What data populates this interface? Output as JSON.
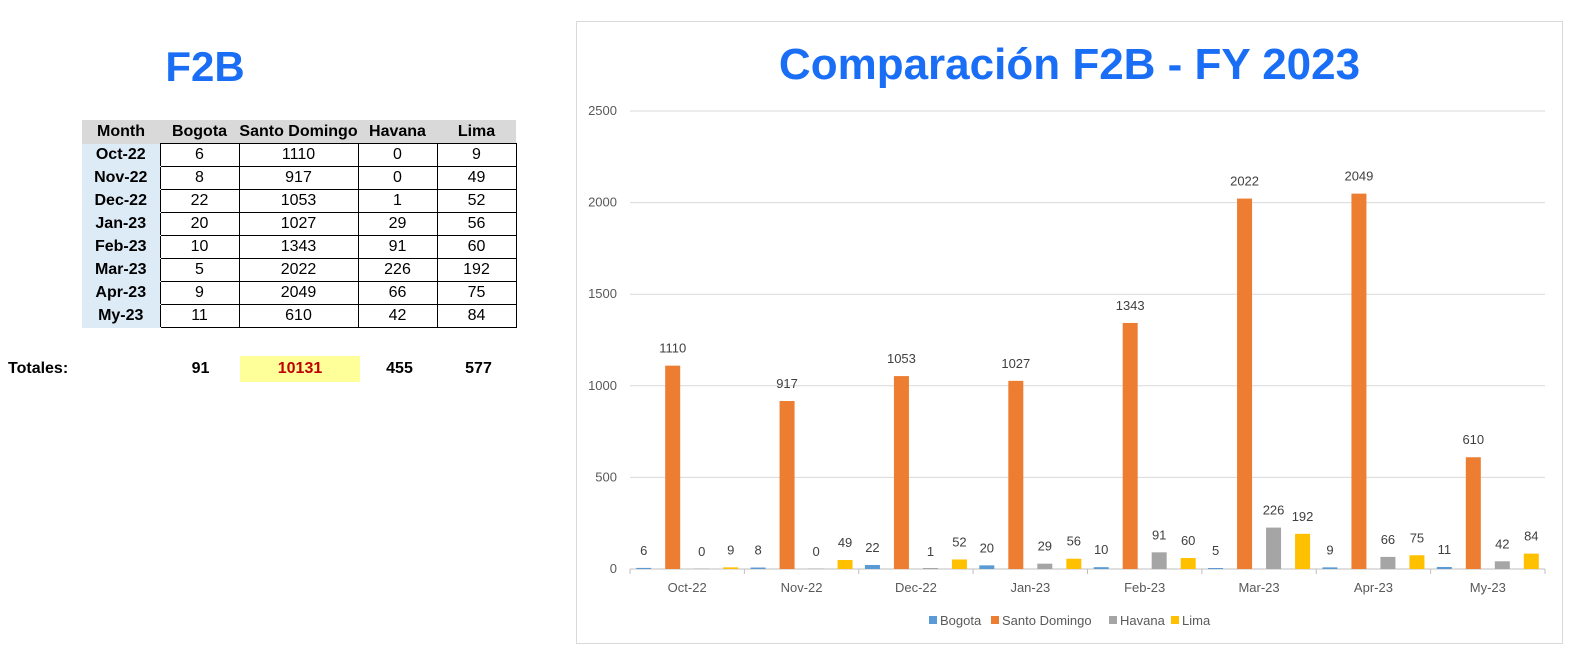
{
  "left_title": "F2B",
  "table": {
    "headers": [
      "Month",
      "Bogota",
      "Santo Domingo",
      "Havana",
      "Lima"
    ],
    "rows": [
      [
        "Oct-22",
        "6",
        "1110",
        "0",
        "9"
      ],
      [
        "Nov-22",
        "8",
        "917",
        "0",
        "49"
      ],
      [
        "Dec-22",
        "22",
        "1053",
        "1",
        "52"
      ],
      [
        "Jan-23",
        "20",
        "1027",
        "29",
        "56"
      ],
      [
        "Feb-23",
        "10",
        "1343",
        "91",
        "60"
      ],
      [
        "Mar-23",
        "5",
        "2022",
        "226",
        "192"
      ],
      [
        "Apr-23",
        "9",
        "2049",
        "66",
        "75"
      ],
      [
        "My-23",
        "11",
        "610",
        "42",
        "84"
      ]
    ]
  },
  "totals": {
    "label": "Totales:",
    "bogota": "91",
    "santo_domingo": "10131",
    "havana": "455",
    "lima": "577"
  },
  "chart_data": {
    "type": "bar",
    "title": "Comparación F2B - FY 2023",
    "xlabel": "",
    "ylabel": "",
    "ylim": [
      0,
      2500
    ],
    "yticks": [
      0,
      500,
      1000,
      1500,
      2000,
      2500
    ],
    "grid": true,
    "legend": "bottom",
    "categories": [
      "Oct-22",
      "Nov-22",
      "Dec-22",
      "Jan-23",
      "Feb-23",
      "Mar-23",
      "Apr-23",
      "My-23"
    ],
    "series": [
      {
        "name": "Bogota",
        "color": "#5b9bd5",
        "values": [
          6,
          8,
          22,
          20,
          10,
          5,
          9,
          11
        ]
      },
      {
        "name": "Santo Domingo",
        "color": "#ed7d31",
        "values": [
          1110,
          917,
          1053,
          1027,
          1343,
          2022,
          2049,
          610
        ]
      },
      {
        "name": "Havana",
        "color": "#a5a5a5",
        "values": [
          0,
          0,
          1,
          29,
          91,
          226,
          66,
          42
        ]
      },
      {
        "name": "Lima",
        "color": "#ffc000",
        "values": [
          9,
          49,
          52,
          56,
          60,
          192,
          75,
          84
        ]
      }
    ]
  },
  "colors": {
    "title_blue": "#1a6ef5",
    "month_cell": "#ddebf7",
    "header_cell": "#d9d9d9",
    "total_highlight_bg": "#ffff99",
    "total_highlight_text": "#c00000"
  }
}
